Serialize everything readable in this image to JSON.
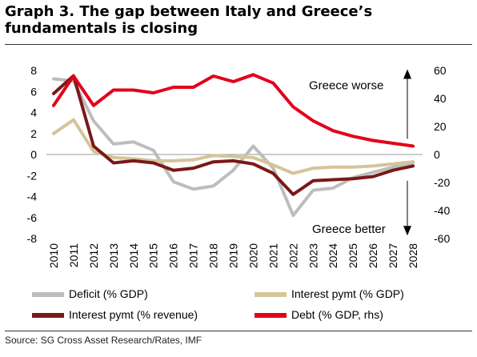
{
  "title": "Graph 3. The gap between Italy and Greece’s fundamentals is closing",
  "source": "Source: SG Cross Asset Research/Rates, IMF",
  "chart_data": {
    "type": "line",
    "x": [
      "2010",
      "2011",
      "2012",
      "2013",
      "2014",
      "2015",
      "2016",
      "2017",
      "2018",
      "2019",
      "2020",
      "2021",
      "2022",
      "2023",
      "2024",
      "2025",
      "2026",
      "2027",
      "2028"
    ],
    "y_left": {
      "range": [
        -8,
        8
      ],
      "ticks": [
        "8",
        "6",
        "4",
        "2",
        "0",
        "-2",
        "-4",
        "-6",
        "-8"
      ]
    },
    "y_right": {
      "range": [
        -60,
        60
      ],
      "ticks": [
        "60",
        "40",
        "20",
        "0",
        "-20",
        "-40",
        "-60"
      ]
    },
    "series": [
      {
        "name": "Deficit (% GDP)",
        "color": "#bdbdbd",
        "axis": "left",
        "values": [
          7.2,
          7.0,
          3.2,
          1.0,
          1.2,
          0.4,
          -2.6,
          -3.3,
          -3.0,
          -1.5,
          0.8,
          -1.3,
          -5.8,
          -3.4,
          -3.2,
          -2.2,
          -1.7,
          -1.2,
          -0.8
        ]
      },
      {
        "name": "Interest pymt (% GDP)",
        "color": "#d6c49a",
        "axis": "left",
        "values": [
          2.0,
          3.3,
          0.3,
          -0.3,
          -0.4,
          -0.6,
          -0.6,
          -0.5,
          -0.1,
          -0.2,
          -0.3,
          -1.0,
          -1.8,
          -1.3,
          -1.2,
          -1.2,
          -1.1,
          -0.9,
          -0.7
        ]
      },
      {
        "name": "Interest pymt (% revenue)",
        "color": "#7b1818",
        "axis": "left",
        "values": [
          5.8,
          7.5,
          0.8,
          -0.8,
          -0.6,
          -0.8,
          -1.5,
          -1.3,
          -0.7,
          -0.6,
          -0.9,
          -1.8,
          -3.8,
          -2.5,
          -2.4,
          -2.3,
          -2.1,
          -1.5,
          -1.1
        ]
      },
      {
        "name": "Debt (% GDP, rhs)",
        "color": "#e3001b",
        "axis": "right",
        "values": [
          35,
          56,
          35,
          46,
          46,
          44,
          48,
          48,
          56,
          52,
          57,
          51,
          34,
          24,
          17,
          13,
          10,
          8,
          6
        ]
      }
    ],
    "annotations": [
      {
        "text": "Greece worse",
        "arrow": "up"
      },
      {
        "text": "Greece better",
        "arrow": "down"
      }
    ],
    "legend_position": "bottom"
  }
}
